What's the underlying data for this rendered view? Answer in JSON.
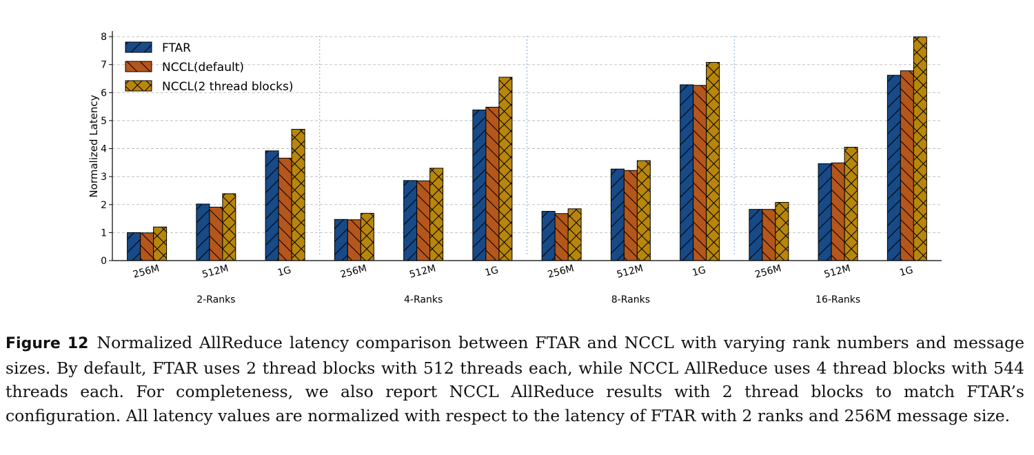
{
  "chart_data": {
    "type": "bar",
    "ylabel": "Normalized Latency",
    "xlabel": "",
    "ylim": [
      0,
      8.2
    ],
    "yticks": [
      0,
      1,
      2,
      3,
      4,
      5,
      6,
      7,
      8
    ],
    "grid": "y dashed",
    "legend_position": "top-left",
    "groups": [
      {
        "label": "2-Ranks",
        "categories": [
          "256M",
          "512M",
          "1G"
        ]
      },
      {
        "label": "4-Ranks",
        "categories": [
          "256M",
          "512M",
          "1G"
        ]
      },
      {
        "label": "8-Ranks",
        "categories": [
          "256M",
          "512M",
          "1G"
        ]
      },
      {
        "label": "16-Ranks",
        "categories": [
          "256M",
          "512M",
          "1G"
        ]
      }
    ],
    "series": [
      {
        "name": "FTAR",
        "color": "#174a87",
        "hatch": "/",
        "values": [
          1.0,
          2.02,
          3.92,
          1.47,
          2.86,
          5.38,
          1.76,
          3.27,
          6.28,
          1.83,
          3.46,
          6.62
        ]
      },
      {
        "name": "NCCL(default)",
        "color": "#b5561a",
        "hatch": "\\",
        "values": [
          0.99,
          1.91,
          3.66,
          1.46,
          2.85,
          5.48,
          1.68,
          3.22,
          6.26,
          1.83,
          3.49,
          6.78
        ]
      },
      {
        "name": "NCCL(2 thread blocks)",
        "color": "#b8860b",
        "hatch": "x",
        "values": [
          1.2,
          2.39,
          4.69,
          1.69,
          3.3,
          6.55,
          1.85,
          3.57,
          7.08,
          2.08,
          4.05,
          7.99
        ]
      }
    ]
  },
  "caption": {
    "label": "Figure 12",
    "text": "Normalized AllReduce latency comparison between FTAR and NCCL with varying rank numbers and message sizes. By default, FTAR uses 2 thread blocks with 512 threads each, while NCCL AllReduce uses 4 thread blocks with 544 threads each. For completeness, we also report NCCL AllReduce results with 2 thread blocks to match FTAR’s configuration. All latency values are normalized with respect to the latency of FTAR with 2 ranks and 256M message size."
  }
}
